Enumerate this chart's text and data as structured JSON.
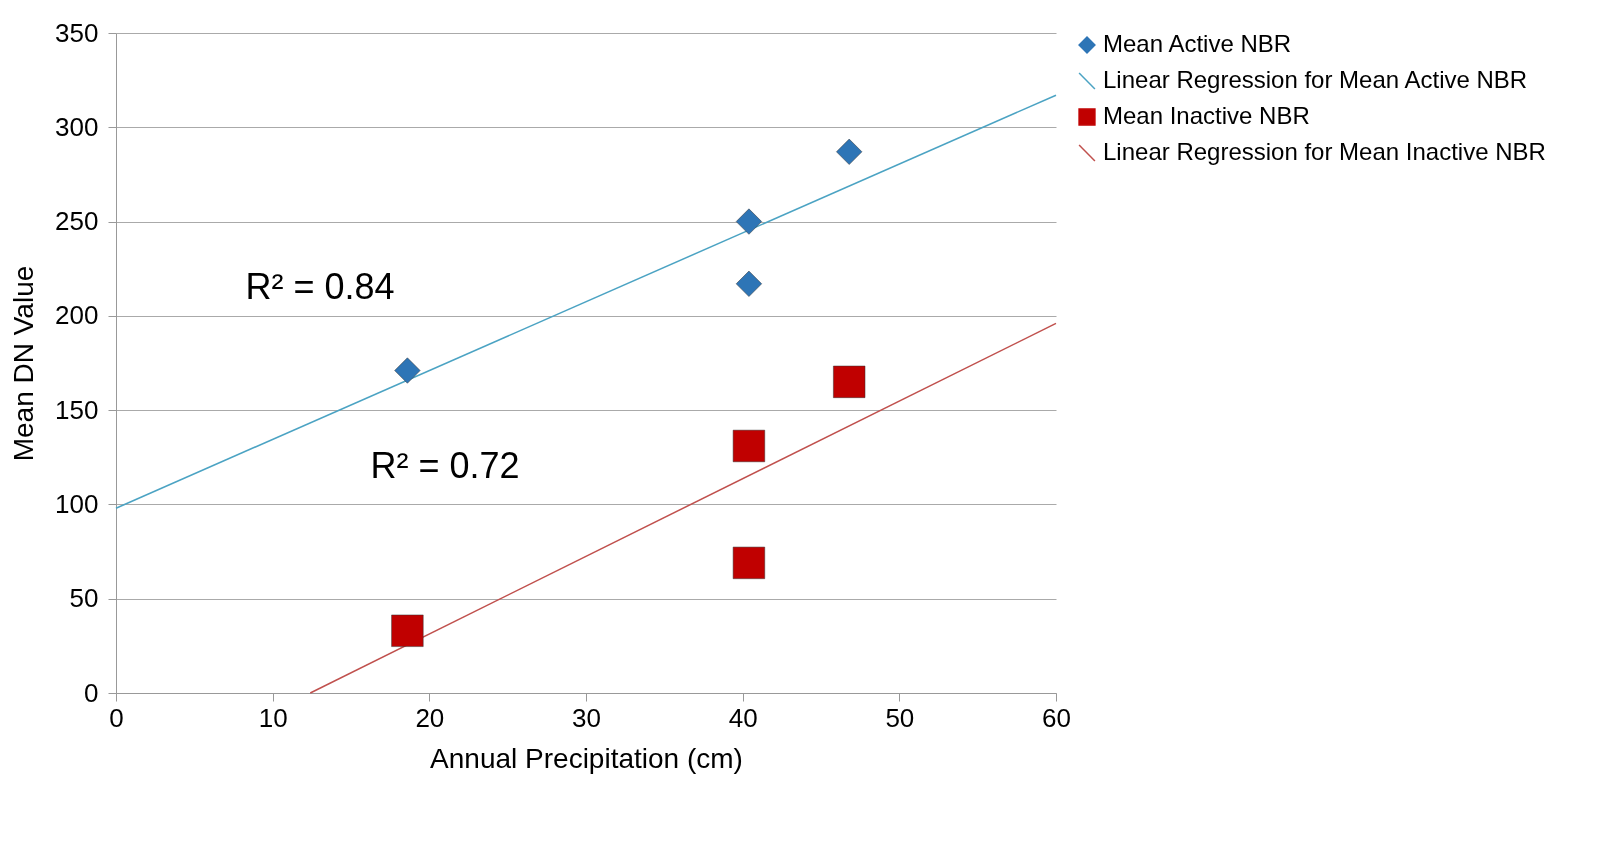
{
  "chart_data": {
    "type": "scatter",
    "xlabel": "Annual Precipitation (cm)",
    "ylabel": "Mean DN Value",
    "xlim": [
      0,
      60
    ],
    "xticks": [
      0,
      10,
      20,
      30,
      40,
      50,
      60
    ],
    "ylim": [
      0,
      350
    ],
    "yticks": [
      0,
      50,
      100,
      150,
      200,
      250,
      300,
      350
    ],
    "grid": "y",
    "legend": "right",
    "series": [
      {
        "name": "Mean Active NBR",
        "marker": "diamond",
        "color": "#2e75b6",
        "x": [
          18.6,
          40.4,
          40.4,
          46.8
        ],
        "values": [
          171,
          250,
          217,
          287
        ]
      },
      {
        "name": "Linear Regression for Mean Active NBR",
        "type": "line",
        "color": "#4ba3c3",
        "x": [
          0,
          60
        ],
        "values": [
          98,
          317
        ]
      },
      {
        "name": "Mean Inactive NBR",
        "marker": "square",
        "color": "#c00000",
        "x": [
          18.6,
          40.4,
          40.4,
          46.8
        ],
        "values": [
          33,
          131,
          69,
          165
        ]
      },
      {
        "name": "Linear Regression for Mean Inactive NBR",
        "type": "line",
        "color": "#c0504d",
        "x": [
          12.4,
          60
        ],
        "values": [
          0,
          196
        ]
      }
    ],
    "annotations": [
      "R² = 0.84",
      "R² = 0.72"
    ]
  }
}
